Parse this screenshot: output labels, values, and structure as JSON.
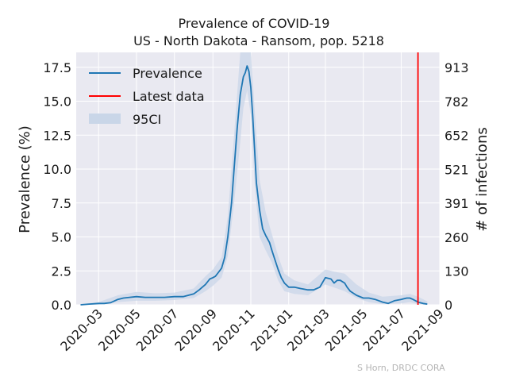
{
  "chart_data": {
    "type": "line",
    "title": "Prevalence of COVID-19",
    "subtitle": "US - North Dakota - Ransom, pop. 5218",
    "ylabel": "Prevalence (%)",
    "y2label": "# of infections",
    "credit": "S Horn, DRDC CORA",
    "colors": {
      "prevalence": "#1f77b4",
      "latest": "#ff0000",
      "ci": "#c9d6e8",
      "plot_bg": "#e9e9f1",
      "grid": "#ffffff"
    },
    "xlim": [
      "2020-01-25",
      "2021-09-01"
    ],
    "ylim": [
      0,
      18.6
    ],
    "y2lim": [
      0,
      970.5
    ],
    "x_ticks": [
      "2020-03",
      "2020-05",
      "2020-07",
      "2020-09",
      "2020-11",
      "2021-01",
      "2021-03",
      "2021-05",
      "2021-07",
      "2021-09"
    ],
    "y_ticks": [
      0.0,
      2.5,
      5.0,
      7.5,
      10.0,
      12.5,
      15.0,
      17.5
    ],
    "y_tick_labels": [
      "0.0",
      "2.5",
      "5.0",
      "7.5",
      "10.0",
      "12.5",
      "15.0",
      "17.5"
    ],
    "y2_ticks": [
      0,
      130,
      260,
      391,
      521,
      652,
      782,
      913
    ],
    "legend": {
      "placement": "top-left",
      "entries": [
        "Prevalence",
        "Latest data",
        "95CI"
      ]
    },
    "latest_date": "2021-07-28",
    "series": [
      {
        "name": "Prevalence",
        "x": [
          "2020-02-01",
          "2020-02-15",
          "2020-03-01",
          "2020-03-10",
          "2020-03-20",
          "2020-04-01",
          "2020-04-10",
          "2020-04-20",
          "2020-05-01",
          "2020-05-15",
          "2020-06-01",
          "2020-06-15",
          "2020-07-01",
          "2020-07-15",
          "2020-08-01",
          "2020-08-10",
          "2020-08-20",
          "2020-08-27",
          "2020-09-01",
          "2020-09-05",
          "2020-09-10",
          "2020-09-15",
          "2020-09-20",
          "2020-09-25",
          "2020-10-01",
          "2020-10-05",
          "2020-10-10",
          "2020-10-15",
          "2020-10-20",
          "2020-10-23",
          "2020-10-26",
          "2020-10-29",
          "2020-11-01",
          "2020-11-04",
          "2020-11-07",
          "2020-11-10",
          "2020-11-15",
          "2020-11-20",
          "2020-11-25",
          "2020-12-01",
          "2020-12-05",
          "2020-12-10",
          "2020-12-15",
          "2020-12-20",
          "2020-12-25",
          "2021-01-01",
          "2021-01-10",
          "2021-01-20",
          "2021-02-01",
          "2021-02-10",
          "2021-02-20",
          "2021-03-01",
          "2021-03-10",
          "2021-03-15",
          "2021-03-20",
          "2021-03-25",
          "2021-04-01",
          "2021-04-05",
          "2021-04-10",
          "2021-04-20",
          "2021-05-01",
          "2021-05-10",
          "2021-05-20",
          "2021-06-01",
          "2021-06-10",
          "2021-06-20",
          "2021-07-01",
          "2021-07-10",
          "2021-07-15",
          "2021-07-20",
          "2021-07-28",
          "2021-08-05",
          "2021-08-12"
        ],
        "values": [
          0.0,
          0.05,
          0.1,
          0.1,
          0.15,
          0.4,
          0.5,
          0.55,
          0.6,
          0.55,
          0.55,
          0.55,
          0.6,
          0.6,
          0.8,
          1.1,
          1.5,
          1.9,
          2.0,
          2.1,
          2.4,
          2.7,
          3.5,
          5.0,
          7.5,
          10.0,
          13.0,
          15.5,
          16.8,
          17.1,
          17.6,
          17.2,
          16.0,
          14.0,
          11.5,
          9.0,
          7.0,
          5.6,
          5.1,
          4.6,
          4.0,
          3.3,
          2.6,
          2.0,
          1.6,
          1.3,
          1.3,
          1.2,
          1.1,
          1.1,
          1.3,
          2.0,
          1.9,
          1.6,
          1.8,
          1.8,
          1.6,
          1.3,
          1.0,
          0.7,
          0.5,
          0.5,
          0.4,
          0.2,
          0.1,
          0.3,
          0.4,
          0.5,
          0.5,
          0.4,
          0.2,
          0.1,
          0.05
        ]
      }
    ],
    "ci": {
      "name": "95CI",
      "x": [
        "2020-02-01",
        "2020-03-01",
        "2020-04-01",
        "2020-05-01",
        "2020-06-01",
        "2020-07-01",
        "2020-08-01",
        "2020-08-20",
        "2020-09-01",
        "2020-09-15",
        "2020-09-25",
        "2020-10-05",
        "2020-10-15",
        "2020-10-20",
        "2020-10-26",
        "2020-11-01",
        "2020-11-07",
        "2020-11-15",
        "2020-11-25",
        "2020-12-05",
        "2020-12-15",
        "2020-12-25",
        "2021-01-10",
        "2021-02-01",
        "2021-03-01",
        "2021-03-20",
        "2021-04-01",
        "2021-04-20",
        "2021-05-10",
        "2021-06-01",
        "2021-07-01",
        "2021-07-15",
        "2021-07-28",
        "2021-08-12"
      ],
      "upper": [
        0.05,
        0.2,
        0.7,
        0.95,
        0.85,
        0.9,
        1.2,
        2.1,
        2.6,
        3.5,
        6.5,
        12.5,
        18.6,
        18.6,
        18.6,
        18.6,
        14.5,
        9.2,
        6.8,
        5.2,
        3.6,
        2.3,
        1.8,
        1.5,
        2.6,
        2.4,
        2.3,
        1.5,
        0.9,
        0.6,
        0.7,
        0.8,
        0.6,
        0.25
      ],
      "lower": [
        0.0,
        0.02,
        0.2,
        0.3,
        0.3,
        0.35,
        0.5,
        1.0,
        1.4,
        2.0,
        3.6,
        7.5,
        12.0,
        14.5,
        15.8,
        14.0,
        9.0,
        5.0,
        4.0,
        3.1,
        1.8,
        1.0,
        0.8,
        0.7,
        1.5,
        1.2,
        1.0,
        0.5,
        0.2,
        0.05,
        0.1,
        0.2,
        0.05,
        0.0
      ]
    }
  }
}
